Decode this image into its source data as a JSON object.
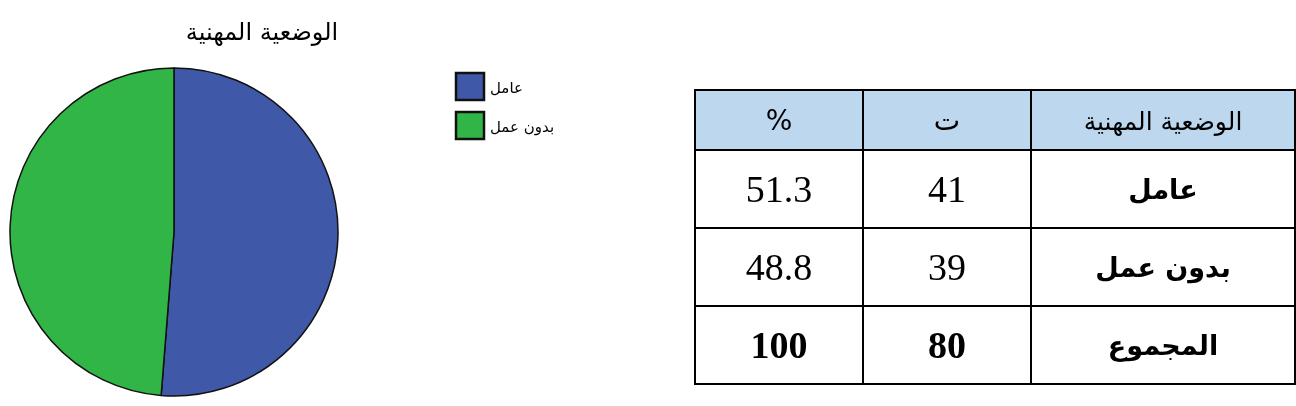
{
  "chart_data": [
    {
      "type": "pie",
      "title": "الوضعية المهنية",
      "categories": [
        "عامل",
        "بدون عمل"
      ],
      "values": [
        51.3,
        48.8
      ],
      "colors": [
        "#3f58a8",
        "#31b546"
      ],
      "legend": "right"
    },
    {
      "type": "other",
      "annotations": [
        "%",
        "ت",
        "الوضعية المهنية",
        "51.3",
        "41",
        "عامل",
        "48.8",
        "39",
        "بدون عمل",
        "100",
        "80",
        "المجموع"
      ]
    }
  ]
}
